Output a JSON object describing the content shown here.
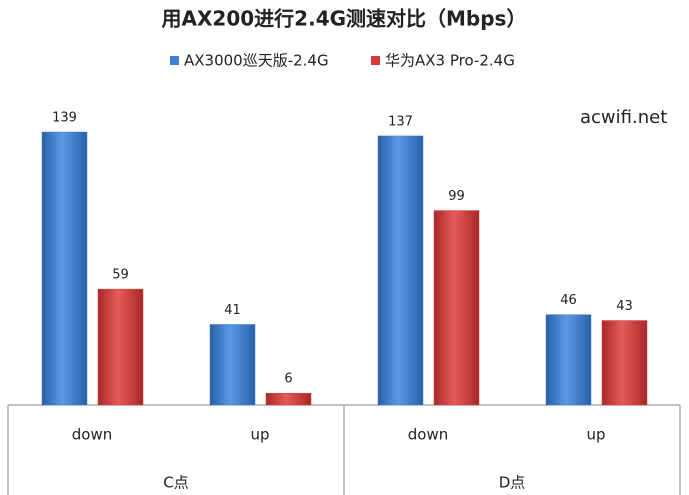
{
  "chart_data": {
    "type": "bar",
    "title": "用AX200进行2.4G测速对比（Mbps）",
    "groups": [
      {
        "name": "C点",
        "categories": [
          "down",
          "up"
        ]
      },
      {
        "name": "D点",
        "categories": [
          "down",
          "up"
        ]
      }
    ],
    "series": [
      {
        "name": "AX3000巡天版-2.4G",
        "color": "#3f7fd0",
        "values": [
          139,
          41,
          137,
          46
        ]
      },
      {
        "name": "华为AX3 Pro-2.4G",
        "color": "#d23b3b",
        "values": [
          59,
          6,
          99,
          43
        ]
      }
    ],
    "annotation": "acwifi.net"
  }
}
